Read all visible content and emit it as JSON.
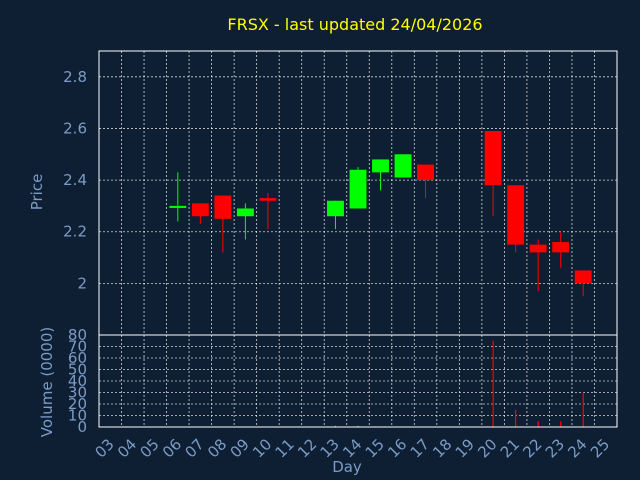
{
  "chart_data": {
    "type": "candlestick",
    "title": "FRSX - last updated 24/04/2026",
    "xlabel": "Day",
    "ylabel": "Price",
    "volume_label": "Volume (0000)",
    "days": [
      "03",
      "04",
      "05",
      "06",
      "07",
      "08",
      "09",
      "10",
      "11",
      "12",
      "13",
      "14",
      "15",
      "16",
      "17",
      "18",
      "19",
      "20",
      "21",
      "22",
      "23",
      "24",
      "25"
    ],
    "price_ticks": [
      "2",
      "2.2",
      "2.4",
      "2.6",
      "2.8"
    ],
    "volume_ticks": [
      "0",
      "10",
      "20",
      "30",
      "40",
      "50",
      "60",
      "70",
      "80"
    ],
    "ylim": [
      1.8,
      2.9
    ],
    "volume_ylim": [
      0,
      80
    ],
    "grid": true,
    "colors": {
      "up": "#00ff00",
      "down": "#ff0000",
      "background": "#0f1f33",
      "title": "#ffff00",
      "axis": "#7a9cc6"
    },
    "candles": [
      {
        "day": "06",
        "open": 2.3,
        "high": 2.43,
        "low": 2.24,
        "close": 2.3,
        "volume": 0
      },
      {
        "day": "07",
        "open": 2.31,
        "high": 2.31,
        "low": 2.23,
        "close": 2.26,
        "volume": 0
      },
      {
        "day": "08",
        "open": 2.34,
        "high": 2.34,
        "low": 2.12,
        "close": 2.25,
        "volume": 0
      },
      {
        "day": "09",
        "open": 2.26,
        "high": 2.31,
        "low": 2.17,
        "close": 2.29,
        "volume": 0
      },
      {
        "day": "10",
        "open": 2.33,
        "high": 2.35,
        "low": 2.21,
        "close": 2.32,
        "volume": 0
      },
      {
        "day": "13",
        "open": 2.26,
        "high": 2.32,
        "low": 2.21,
        "close": 2.32,
        "volume": 1
      },
      {
        "day": "14",
        "open": 2.29,
        "high": 2.45,
        "low": 2.29,
        "close": 2.44,
        "volume": 1
      },
      {
        "day": "15",
        "open": 2.43,
        "high": 2.48,
        "low": 2.36,
        "close": 2.48,
        "volume": 0
      },
      {
        "day": "16",
        "open": 2.41,
        "high": 2.5,
        "low": 2.41,
        "close": 2.5,
        "volume": 0
      },
      {
        "day": "17",
        "open": 2.46,
        "high": 2.46,
        "low": 2.33,
        "close": 2.4,
        "volume": 0
      },
      {
        "day": "20",
        "open": 2.59,
        "high": 2.59,
        "low": 2.26,
        "close": 2.38,
        "volume": 75
      },
      {
        "day": "21",
        "open": 2.38,
        "high": 2.38,
        "low": 2.12,
        "close": 2.15,
        "volume": 15
      },
      {
        "day": "22",
        "open": 2.15,
        "high": 2.17,
        "low": 1.97,
        "close": 2.12,
        "volume": 5
      },
      {
        "day": "23",
        "open": 2.16,
        "high": 2.2,
        "low": 2.06,
        "close": 2.12,
        "volume": 5
      },
      {
        "day": "24",
        "open": 2.05,
        "high": 2.05,
        "low": 1.95,
        "close": 2.0,
        "volume": 30
      }
    ]
  }
}
